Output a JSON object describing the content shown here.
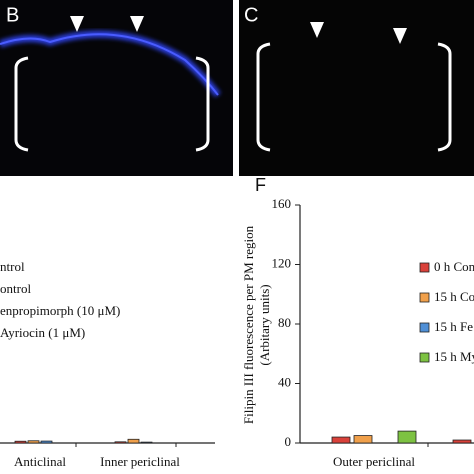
{
  "panels": [
    {
      "label": "B"
    },
    {
      "label": "C"
    }
  ],
  "chart_data": [
    {
      "type": "bar",
      "categories": [
        "Anticlinal",
        "Inner periclinal"
      ],
      "series": [
        {
          "name": "ntrol",
          "color": "#d9413a",
          "values": [
            1.2,
            0.8
          ]
        },
        {
          "name": "ontrol",
          "color": "#f0a04b",
          "values": [
            1.5,
            2.5
          ]
        },
        {
          "name": "enpropimorph (10 μM)",
          "color": "#4f8fd6",
          "values": [
            1.3,
            0.6
          ]
        },
        {
          "name": "Ayriocin (1 μM)",
          "color": "#7dc242",
          "values": [
            null,
            null
          ]
        }
      ],
      "ylim": [
        0,
        160
      ]
    },
    {
      "type": "bar",
      "title": "F",
      "ylabel": [
        "Filipin III fluorescence per PM region",
        "(Arbitary units)"
      ],
      "categories": [
        "Outer periclinal",
        null
      ],
      "series": [
        {
          "name": "0 h Con",
          "color": "#d9413a",
          "values": [
            4,
            2
          ]
        },
        {
          "name": "15 h Co",
          "color": "#f0a04b",
          "values": [
            5,
            null
          ]
        },
        {
          "name": "15 h Fe",
          "color": "#4f8fd6",
          "values": [
            null,
            null
          ]
        },
        {
          "name": "15 h My",
          "color": "#7dc242",
          "values": [
            8,
            null
          ]
        }
      ],
      "ylim": [
        0,
        160
      ],
      "yticks": [
        0,
        40,
        80,
        120,
        160
      ]
    }
  ]
}
